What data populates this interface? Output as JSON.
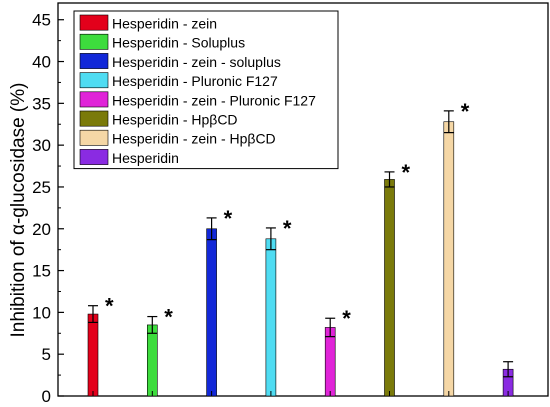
{
  "chart_data": {
    "type": "bar",
    "title": "",
    "xlabel": "",
    "ylabel": "Inhibition of α-glucosidase (%)",
    "ylim": [
      0,
      47
    ],
    "yticks": [
      0,
      5,
      10,
      15,
      20,
      25,
      30,
      35,
      40,
      45
    ],
    "grid": false,
    "legend_position": "top-left",
    "significance_marker": "*",
    "series": [
      {
        "name": "Hesperidin - zein",
        "value": 9.8,
        "error": 1.0,
        "color": "#e3001b",
        "significant": true
      },
      {
        "name": "Hesperidin - Soluplus",
        "value": 8.5,
        "error": 1.0,
        "color": "#3ddc3d",
        "significant": true
      },
      {
        "name": "Hesperidin - zein - soluplus",
        "value": 20.0,
        "error": 1.3,
        "color": "#1228d8",
        "significant": true
      },
      {
        "name": "Hesperidin - Pluronic F127",
        "value": 18.8,
        "error": 1.3,
        "color": "#4fdcf2",
        "significant": true
      },
      {
        "name": "Hesperidin - zein - Pluronic F127",
        "value": 8.2,
        "error": 1.1,
        "color": "#e024d8",
        "significant": true
      },
      {
        "name": "Hesperidin - HpβCD",
        "value": 25.9,
        "error": 0.9,
        "color": "#7a7a0a",
        "significant": true
      },
      {
        "name": "Hesperidin - zein - HpβCD",
        "value": 32.8,
        "error": 1.3,
        "color": "#f5d7a6",
        "significant": true
      },
      {
        "name": "Hesperidin",
        "value": 3.2,
        "error": 0.9,
        "color": "#8a2be2",
        "significant": false
      }
    ]
  }
}
